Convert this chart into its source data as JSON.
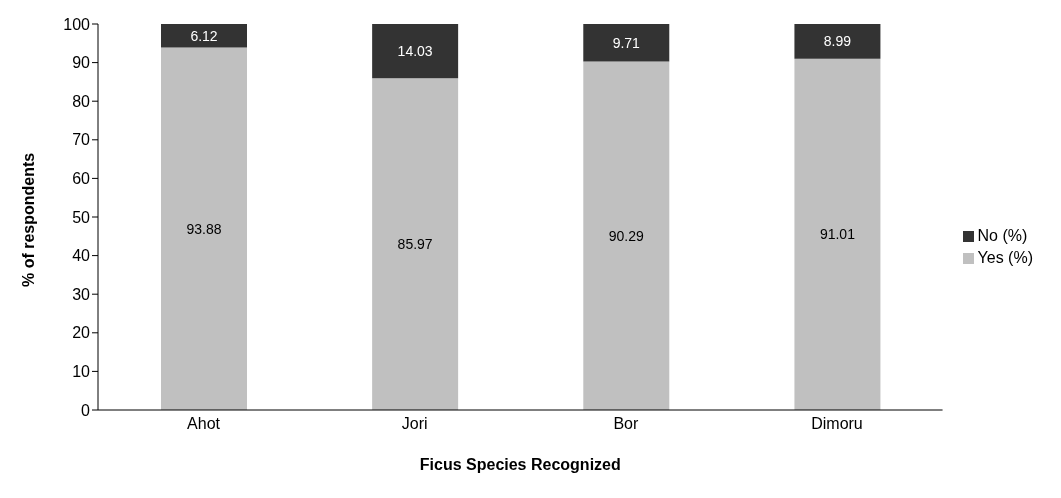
{
  "chart_data": {
    "type": "bar",
    "stacked": true,
    "xlabel": "Ficus Species Recognized",
    "ylabel": "% of respondents",
    "categories": [
      "Ahot",
      "Jori",
      "Bor",
      "Dimoru"
    ],
    "series": [
      {
        "name": "Yes (%)",
        "color": "#c0c0c0",
        "values": [
          93.88,
          85.97,
          90.29,
          91.01
        ]
      },
      {
        "name": "No (%)",
        "color": "#333333",
        "values": [
          6.12,
          14.03,
          9.71,
          8.99
        ]
      }
    ],
    "ylim": [
      0,
      100
    ],
    "yticks": [
      0,
      10,
      20,
      30,
      40,
      50,
      60,
      70,
      80,
      90,
      100
    ],
    "grid": false,
    "legend": "right",
    "data_labels": true
  }
}
